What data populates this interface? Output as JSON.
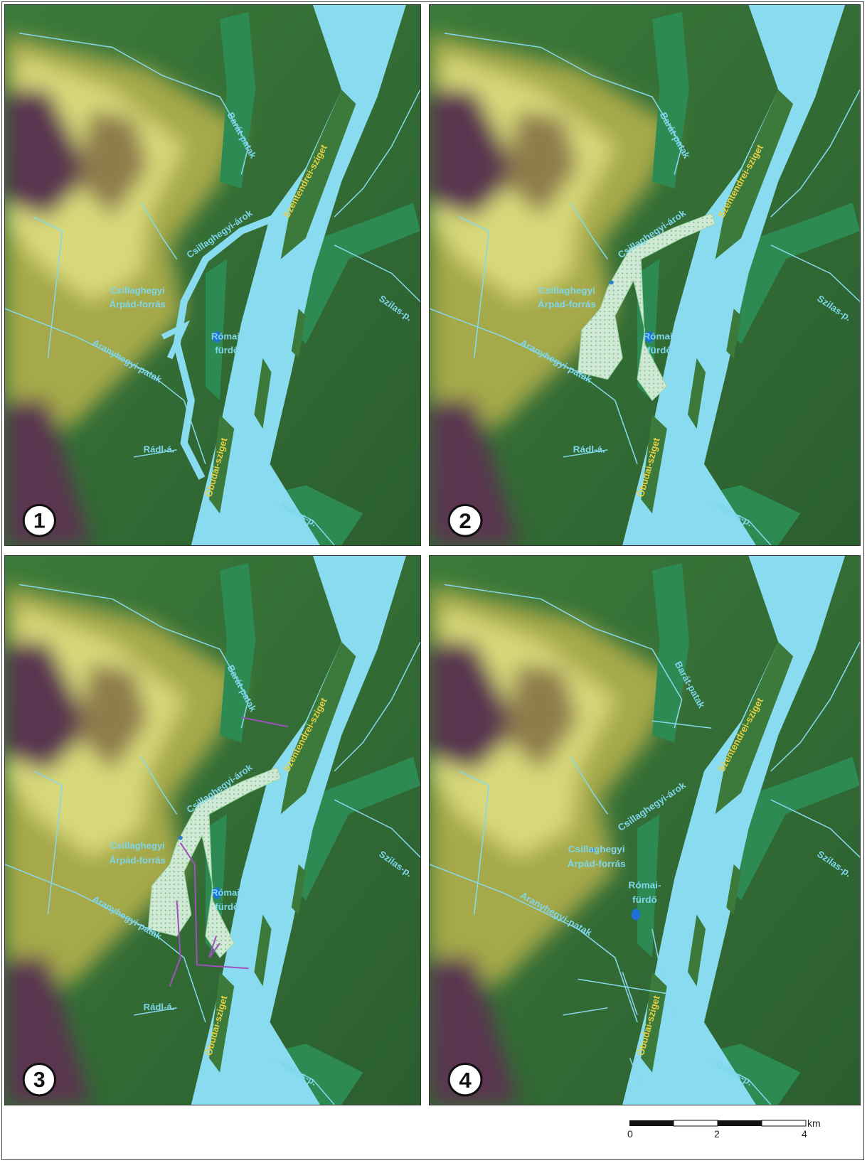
{
  "panels": [
    {
      "number": "1",
      "labels": [
        "Barát-patak",
        "Szentendrei-sziget",
        "Csillaghegyi-árok",
        "Csillaghegyi",
        "Árpád-forrás",
        "Római-",
        "fürdő",
        "Aranyhegyi-patak",
        "Szilas-p.",
        "Rádl-á.",
        "Óbudai-sziget",
        "Rákos-p."
      ]
    },
    {
      "number": "2",
      "labels": [
        "Barát-patak",
        "Szentendrei-sziget",
        "Csillaghegyi-árok",
        "Csillaghegyi",
        "Árpád-forrás",
        "Római-",
        "fürdő",
        "Aranyhegyi-patak",
        "Szilas-p.",
        "Rádl-á.",
        "Óbudai-sziget",
        "Rákos-p."
      ]
    },
    {
      "number": "3",
      "labels": [
        "Barát-patak",
        "Szentendrei-sziget",
        "Csillaghegyi-árok",
        "Csillaghegyi",
        "Árpád-forrás",
        "Római-",
        "fürdő",
        "Aranyhegyi-patak",
        "Szilas-p.",
        "Rádl-á.",
        "Óbudai-sziget",
        "Rákos-p."
      ]
    },
    {
      "number": "4",
      "labels": [
        "Barát-patak",
        "Szentendrei-sziget",
        "Csillaghegyi-árok",
        "Csillaghegyi",
        "Árpád-forrás",
        "Római-",
        "fürdő",
        "Aranyhegyi-patak",
        "Szilas-p.",
        "Óbudai-sziget",
        "Rákos-p."
      ]
    }
  ],
  "scale_bar": {
    "labels": [
      "0",
      "2",
      "4"
    ],
    "unit": "km"
  }
}
